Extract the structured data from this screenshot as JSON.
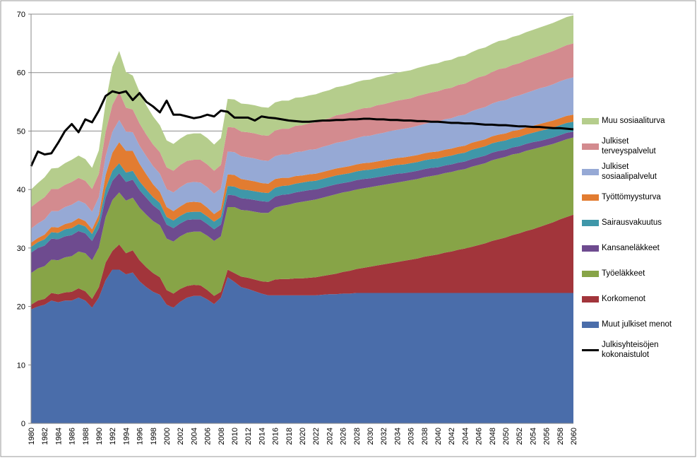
{
  "chart_data": {
    "type": "stacked-area",
    "categories": [
      "1980",
      null,
      "1982",
      null,
      "1984",
      null,
      "1986",
      null,
      "1988",
      null,
      "1990",
      null,
      "1992",
      null,
      "1994",
      null,
      "1996",
      null,
      "1998",
      null,
      "2000",
      null,
      "2002",
      null,
      "2004",
      null,
      "2006",
      null,
      "2008",
      null,
      "2010",
      null,
      "2012",
      null,
      "2014",
      null,
      "2016",
      null,
      "2018",
      null,
      "2020",
      null,
      "2022",
      null,
      "2024",
      null,
      "2026",
      null,
      "2028",
      null,
      "2030",
      null,
      "2032",
      null,
      "2034",
      null,
      "2036",
      null,
      "2038",
      null,
      "2040",
      null,
      "2042",
      null,
      "2044",
      null,
      "2046",
      null,
      "2048",
      null,
      "2050",
      null,
      "2052",
      null,
      "2054",
      null,
      "2056",
      null,
      "2058",
      null,
      "2060"
    ],
    "ylim": [
      0,
      70
    ],
    "yticks": [
      0,
      10,
      20,
      30,
      40,
      50,
      60,
      70
    ],
    "grid": true,
    "series": [
      {
        "name": "Muut julkiset menot",
        "color": "#4a6daa",
        "type": "area",
        "values": [
          19.5,
          20,
          20.3,
          21,
          20.7,
          21,
          21,
          21.5,
          21,
          19.8,
          21.5,
          24.5,
          26.3,
          26.3,
          25.5,
          25.8,
          24.3,
          23.3,
          22.5,
          22,
          20.3,
          19.8,
          20.8,
          21.5,
          21.8,
          21.8,
          21.2,
          20.4,
          21.5,
          25,
          24.2,
          23.3,
          23,
          22.6,
          22.2,
          21.9,
          21.9,
          21.9,
          21.9,
          21.9,
          21.9,
          21.9,
          21.9,
          22,
          22.1,
          22.1,
          22.2,
          22.2,
          22.3,
          22.3,
          22.3,
          22.3,
          22.3,
          22.3,
          22.3,
          22.3,
          22.3,
          22.3,
          22.3,
          22.3,
          22.3,
          22.3,
          22.3,
          22.3,
          22.3,
          22.3,
          22.3,
          22.3,
          22.3,
          22.3,
          22.3,
          22.3,
          22.3,
          22.3,
          22.3,
          22.3,
          22.3,
          22.3,
          22.3,
          22.3,
          22.3
        ]
      },
      {
        "name": "Korkomenot",
        "color": "#a2353b",
        "type": "area",
        "values": [
          0.8,
          1,
          1,
          1.3,
          1.4,
          1.4,
          1.5,
          1.6,
          1.6,
          1.5,
          1.8,
          3,
          3.2,
          4.3,
          3.6,
          3.8,
          3.6,
          3.4,
          3.2,
          3,
          2.5,
          2.4,
          2.2,
          2,
          1.9,
          1.8,
          1.6,
          1.4,
          1,
          1.3,
          1.5,
          1.8,
          1.9,
          2,
          2.1,
          2.3,
          2.7,
          2.8,
          2.8,
          2.9,
          2.9,
          3,
          3.1,
          3.2,
          3.3,
          3.5,
          3.7,
          3.9,
          4.1,
          4.3,
          4.5,
          4.7,
          4.9,
          5.1,
          5.3,
          5.5,
          5.7,
          5.9,
          6.2,
          6.4,
          6.6,
          6.9,
          7.1,
          7.4,
          7.6,
          7.9,
          8.2,
          8.5,
          8.9,
          9.2,
          9.5,
          9.9,
          10.2,
          10.6,
          10.9,
          11.3,
          11.7,
          12.1,
          12.6,
          13,
          13.4
        ]
      },
      {
        "name": "Työeläkkeet",
        "color": "#87a447",
        "type": "area",
        "values": [
          5.4,
          5.5,
          5.6,
          5.7,
          5.8,
          6,
          6.1,
          6.3,
          6.5,
          6.6,
          6.8,
          7.8,
          8.7,
          8.9,
          9,
          9,
          9,
          9,
          8.9,
          8.9,
          8.8,
          8.9,
          9,
          9.1,
          9.1,
          9.2,
          9.3,
          9.4,
          9.5,
          10.7,
          11.3,
          11.4,
          11.5,
          11.6,
          11.7,
          11.8,
          12.3,
          12.5,
          12.7,
          12.9,
          13.1,
          13.2,
          13.3,
          13.4,
          13.5,
          13.6,
          13.6,
          13.6,
          13.6,
          13.6,
          13.6,
          13.6,
          13.6,
          13.6,
          13.6,
          13.6,
          13.6,
          13.6,
          13.6,
          13.6,
          13.6,
          13.6,
          13.6,
          13.6,
          13.6,
          13.7,
          13.7,
          13.7,
          13.8,
          13.8,
          13.8,
          13.8,
          13.7,
          13.7,
          13.7,
          13.6,
          13.5,
          13.4,
          13.3,
          13.3,
          13.2
        ]
      },
      {
        "name": "Kansaneläkkeet",
        "color": "#6e4b8f",
        "type": "area",
        "values": [
          3.5,
          3.5,
          3.5,
          3.6,
          3.6,
          3.6,
          3.6,
          3.5,
          3.4,
          3.3,
          3.3,
          3.3,
          3.3,
          3.3,
          3.2,
          3.1,
          3,
          2.9,
          2.7,
          2.5,
          2.4,
          2.3,
          2.2,
          2.2,
          2.1,
          2.1,
          2,
          2,
          2,
          2.1,
          2,
          2,
          2,
          2,
          2,
          1.9,
          1.9,
          1.9,
          1.8,
          1.8,
          1.8,
          1.8,
          1.7,
          1.7,
          1.7,
          1.7,
          1.6,
          1.6,
          1.6,
          1.6,
          1.5,
          1.5,
          1.5,
          1.5,
          1.5,
          1.4,
          1.4,
          1.4,
          1.4,
          1.4,
          1.3,
          1.3,
          1.3,
          1.3,
          1.3,
          1.3,
          1.3,
          1.3,
          1.3,
          1.3,
          1.2,
          1.2,
          1.2,
          1.2,
          1.2,
          1.1,
          1.1,
          1.1,
          1.1,
          1.1,
          1
        ]
      },
      {
        "name": "Sairausvakuutus",
        "color": "#3f97a9",
        "type": "area",
        "values": [
          1,
          1,
          1.1,
          1.1,
          1.1,
          1.2,
          1.2,
          1.2,
          1.2,
          1.2,
          1.3,
          1.6,
          1.7,
          1.7,
          1.6,
          1.5,
          1.5,
          1.4,
          1.4,
          1.3,
          1.3,
          1.3,
          1.3,
          1.3,
          1.3,
          1.3,
          1.3,
          1.3,
          1.3,
          1.5,
          1.5,
          1.5,
          1.5,
          1.5,
          1.5,
          1.5,
          1.5,
          1.5,
          1.5,
          1.5,
          1.5,
          1.5,
          1.5,
          1.5,
          1.5,
          1.5,
          1.5,
          1.5,
          1.5,
          1.5,
          1.5,
          1.5,
          1.5,
          1.5,
          1.5,
          1.5,
          1.5,
          1.5,
          1.5,
          1.5,
          1.5,
          1.5,
          1.5,
          1.5,
          1.5,
          1.6,
          1.6,
          1.6,
          1.6,
          1.6,
          1.6,
          1.6,
          1.6,
          1.6,
          1.6,
          1.7,
          1.7,
          1.7,
          1.7,
          1.7,
          1.7
        ]
      },
      {
        "name": "Työttömyysturva",
        "color": "#e27c31",
        "type": "area",
        "values": [
          0.7,
          0.7,
          0.8,
          0.9,
          0.9,
          0.9,
          1,
          1,
          0.9,
          0.8,
          1,
          2.3,
          3.1,
          3.6,
          3.7,
          3.4,
          3,
          2.6,
          2.2,
          1.9,
          1.7,
          1.6,
          1.6,
          1.7,
          1.7,
          1.6,
          1.5,
          1.3,
          1.3,
          2,
          2,
          1.8,
          1.7,
          1.7,
          1.6,
          1.6,
          1.5,
          1.4,
          1.3,
          1.3,
          1.2,
          1.2,
          1.2,
          1.2,
          1.2,
          1.2,
          1.2,
          1.2,
          1.2,
          1.2,
          1.2,
          1.2,
          1.2,
          1.2,
          1.2,
          1.2,
          1.2,
          1.2,
          1.2,
          1.2,
          1.2,
          1.2,
          1.2,
          1.2,
          1.2,
          1.2,
          1.2,
          1.2,
          1.2,
          1.2,
          1.2,
          1.2,
          1.2,
          1.2,
          1.2,
          1.2,
          1.2,
          1.2,
          1.2,
          1.2,
          1.2
        ]
      },
      {
        "name": "Julkiset sosiaalipalvelut",
        "color": "#96a9d5",
        "type": "area",
        "values": [
          2.4,
          2.5,
          2.6,
          2.7,
          2.8,
          2.9,
          3,
          3,
          3,
          3,
          3,
          3.2,
          3.6,
          3.8,
          3.3,
          3.2,
          3.1,
          3.1,
          3.1,
          3.1,
          3.1,
          3.2,
          3.3,
          3.3,
          3.4,
          3.4,
          3.5,
          3.5,
          3.6,
          3.9,
          3.9,
          3.9,
          3.9,
          3.9,
          3.9,
          3.9,
          3.9,
          4,
          4,
          4.1,
          4.1,
          4.2,
          4.2,
          4.3,
          4.3,
          4.4,
          4.4,
          4.5,
          4.5,
          4.6,
          4.6,
          4.7,
          4.7,
          4.8,
          4.8,
          4.9,
          4.9,
          5,
          5,
          5.1,
          5.1,
          5.2,
          5.2,
          5.3,
          5.3,
          5.4,
          5.5,
          5.5,
          5.6,
          5.7,
          5.7,
          5.8,
          5.9,
          5.9,
          6,
          6.1,
          6.1,
          6.2,
          6.3,
          6.3,
          6.4
        ]
      },
      {
        "name": "Julkiset terveyspalvelut",
        "color": "#d38b8f",
        "type": "area",
        "values": [
          3.7,
          3.7,
          3.8,
          3.8,
          3.8,
          3.8,
          3.9,
          3.9,
          3.9,
          3.9,
          4,
          4.2,
          4.6,
          4.8,
          4.1,
          3.9,
          3.8,
          3.7,
          3.7,
          3.7,
          3.7,
          3.7,
          3.8,
          3.8,
          3.8,
          3.9,
          3.9,
          3.9,
          4,
          4.2,
          4.2,
          4.2,
          4.3,
          4.3,
          4.3,
          4.3,
          4.4,
          4.4,
          4.4,
          4.5,
          4.5,
          4.5,
          4.6,
          4.6,
          4.6,
          4.7,
          4.7,
          4.7,
          4.8,
          4.8,
          4.8,
          4.9,
          4.9,
          4.9,
          5,
          5,
          5,
          5.1,
          5.1,
          5.1,
          5.2,
          5.2,
          5.2,
          5.3,
          5.3,
          5.3,
          5.4,
          5.4,
          5.4,
          5.5,
          5.5,
          5.5,
          5.5,
          5.6,
          5.6,
          5.6,
          5.7,
          5.7,
          5.7,
          5.8,
          5.8
        ]
      },
      {
        "name": "Muu sosiaaliturva",
        "color": "#b5cd8c",
        "type": "area",
        "values": [
          3,
          3.2,
          3.4,
          3.5,
          3.6,
          3.7,
          3.8,
          3.8,
          3.7,
          3.6,
          4,
          5,
          6.5,
          7,
          6.1,
          5.8,
          5.4,
          5,
          4.8,
          4.6,
          4.6,
          4.6,
          4.5,
          4.5,
          4.5,
          4.5,
          4.5,
          4.5,
          4.6,
          4.8,
          4.8,
          4.8,
          4.8,
          4.8,
          4.8,
          4.8,
          4.8,
          4.8,
          4.8,
          4.8,
          4.8,
          4.8,
          4.8,
          4.8,
          4.8,
          4.8,
          4.8,
          4.8,
          4.8,
          4.8,
          4.8,
          4.8,
          4.8,
          4.8,
          4.8,
          4.8,
          4.8,
          4.8,
          4.8,
          4.8,
          4.8,
          4.8,
          4.8,
          4.8,
          4.8,
          4.8,
          4.8,
          4.8,
          4.8,
          4.8,
          4.8,
          4.8,
          4.8,
          4.8,
          4.8,
          4.8,
          4.8,
          4.8,
          4.8,
          4.8,
          4.8
        ]
      },
      {
        "name": "Julkisyhteisöjen kokonaistulot",
        "color": "#000000",
        "type": "line",
        "values": [
          44,
          46.5,
          46,
          46.2,
          48,
          50,
          51.2,
          49.8,
          52,
          51.5,
          53.5,
          56,
          56.8,
          56.5,
          56.8,
          55.3,
          56.5,
          55,
          54.2,
          53.2,
          55.2,
          52.8,
          52.8,
          52.5,
          52.2,
          52.4,
          52.8,
          52.5,
          53.5,
          53.3,
          52.3,
          52.3,
          52.3,
          51.8,
          52.5,
          52.3,
          52.2,
          52,
          51.8,
          51.7,
          51.6,
          51.6,
          51.7,
          51.8,
          51.8,
          51.9,
          51.9,
          52,
          52,
          52.1,
          52.1,
          52,
          52,
          51.9,
          51.9,
          51.8,
          51.8,
          51.7,
          51.7,
          51.6,
          51.6,
          51.5,
          51.4,
          51.4,
          51.3,
          51.3,
          51.2,
          51.1,
          51.1,
          51,
          51,
          50.9,
          50.8,
          50.8,
          50.7,
          50.7,
          50.6,
          50.5,
          50.5,
          50.4,
          50.3
        ]
      }
    ]
  }
}
